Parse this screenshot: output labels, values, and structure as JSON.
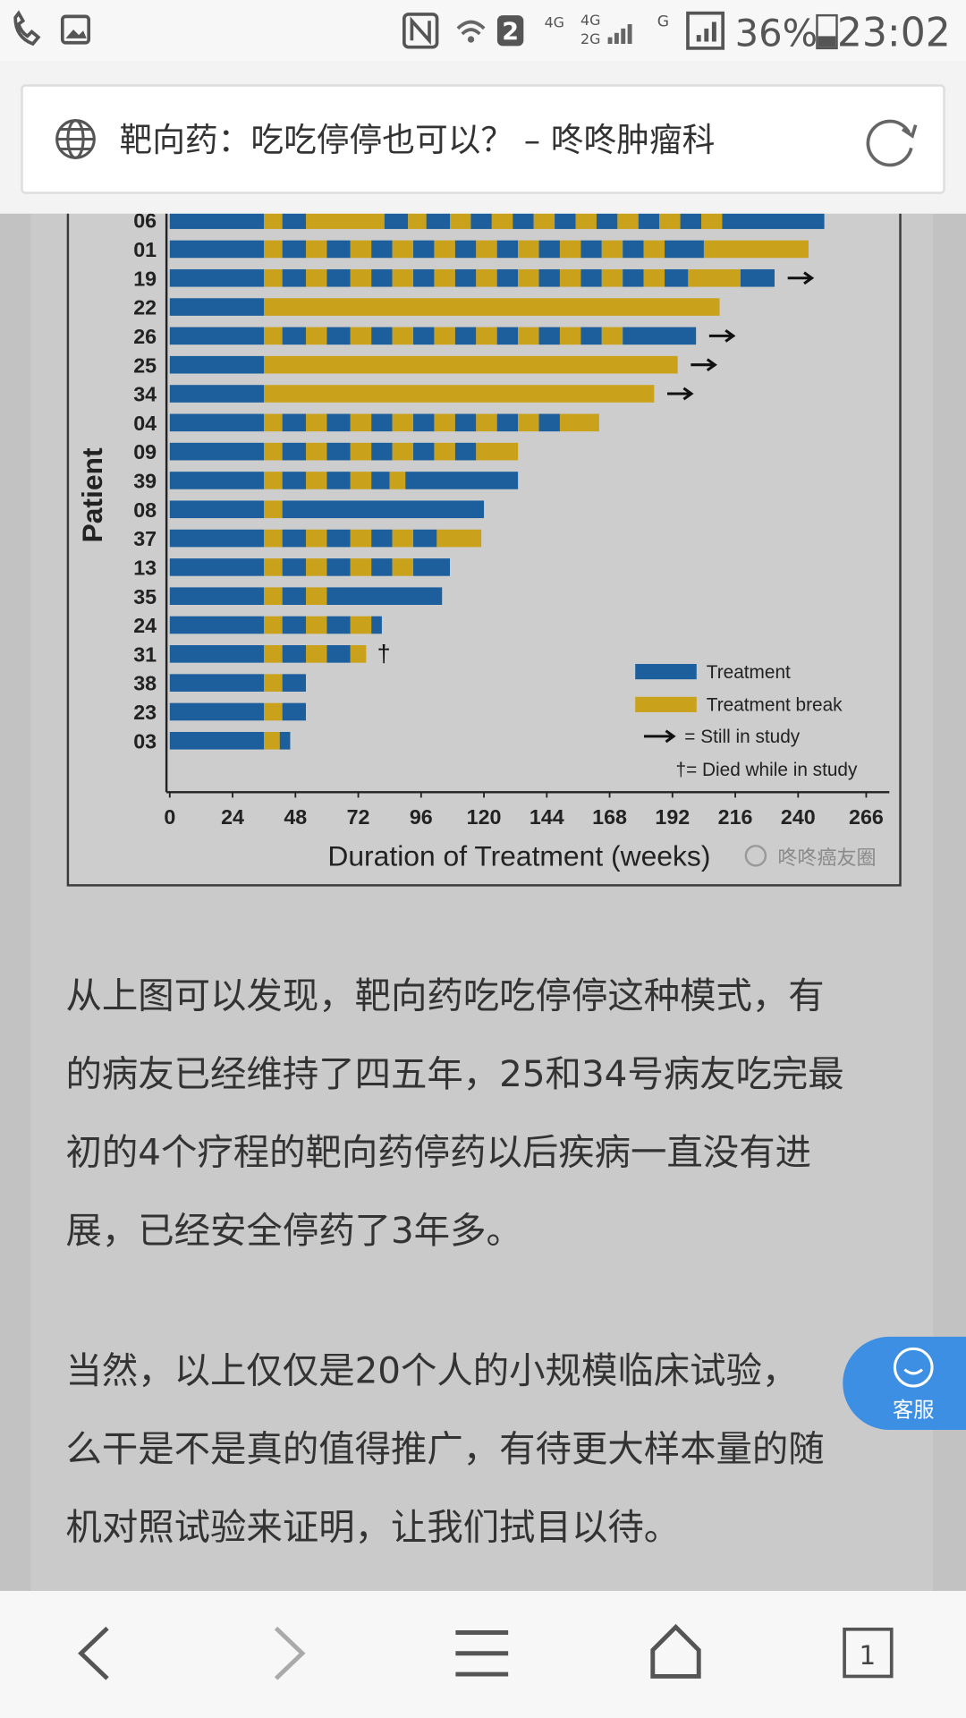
{
  "status_bar": {
    "time": "23:02",
    "battery": "36%",
    "sim_badge": "2",
    "network_labels": [
      "4G",
      "4G",
      "2G",
      "G"
    ]
  },
  "address_bar": {
    "title": "靶向药：吃吃停停也可以？ – 咚咚肿瘤科"
  },
  "chart_data": {
    "type": "swimmer",
    "x_label": "Duration of Treatment (weeks)",
    "y_label": "Patient",
    "categories": [
      "06",
      "01",
      "19",
      "22",
      "26",
      "25",
      "34",
      "04",
      "09",
      "39",
      "08",
      "37",
      "13",
      "35",
      "24",
      "31",
      "38",
      "23",
      "03"
    ],
    "series": [
      {
        "name": "Treatment",
        "color": "#1c5f9c"
      },
      {
        "name": "Treatment break",
        "color": "#c9a11b"
      }
    ],
    "segments": [
      [
        36,
        7,
        9,
        30,
        9,
        7,
        9,
        8,
        8,
        8,
        8,
        8,
        8,
        8,
        8,
        8,
        8,
        8,
        8,
        8,
        39
      ],
      [
        36,
        7,
        9,
        8,
        9,
        8,
        8,
        8,
        8,
        8,
        8,
        8,
        8,
        8,
        8,
        8,
        8,
        8,
        8,
        8,
        15,
        40
      ],
      [
        36,
        7,
        9,
        8,
        9,
        8,
        8,
        8,
        8,
        8,
        8,
        8,
        8,
        8,
        8,
        8,
        8,
        8,
        8,
        8,
        9,
        20,
        13
      ],
      [
        36,
        174
      ],
      [
        36,
        7,
        9,
        8,
        9,
        8,
        8,
        8,
        8,
        8,
        8,
        8,
        8,
        8,
        8,
        8,
        8,
        8,
        28
      ],
      [
        36,
        158
      ],
      [
        36,
        149
      ],
      [
        36,
        7,
        9,
        8,
        9,
        8,
        8,
        8,
        8,
        8,
        8,
        8,
        8,
        8,
        8,
        15
      ],
      [
        36,
        7,
        9,
        8,
        9,
        8,
        8,
        8,
        8,
        8,
        8,
        16
      ],
      [
        36,
        7,
        9,
        8,
        9,
        8,
        7,
        6,
        43
      ],
      [
        36,
        7,
        77
      ],
      [
        36,
        7,
        9,
        8,
        9,
        8,
        8,
        8,
        9,
        17
      ],
      [
        36,
        7,
        9,
        8,
        9,
        8,
        8,
        8,
        14
      ],
      [
        36,
        7,
        9,
        8,
        44
      ],
      [
        36,
        7,
        9,
        8,
        9,
        8,
        4
      ],
      [
        36,
        7,
        9,
        8,
        9,
        6
      ],
      [
        36,
        7,
        9
      ],
      [
        36,
        7,
        9
      ],
      [
        36,
        6,
        4
      ]
    ],
    "still_in_study": [
      false,
      false,
      true,
      false,
      true,
      true,
      true,
      false,
      false,
      false,
      false,
      false,
      false,
      false,
      false,
      false,
      false,
      false,
      false
    ],
    "annotations": [
      null,
      null,
      null,
      null,
      null,
      null,
      null,
      null,
      null,
      null,
      null,
      null,
      null,
      null,
      null,
      "†",
      null,
      null,
      null
    ],
    "legend_notes": [
      "= Still in study",
      "†= Died while in study"
    ],
    "watermark": "咚咚癌友圈",
    "xlim": [
      0,
      274
    ],
    "xticks": [
      0,
      24,
      48,
      72,
      96,
      120,
      144,
      168,
      192,
      216,
      240,
      266
    ]
  },
  "article": {
    "paragraphs": [
      [
        "从上图可以发现，靶向药吃吃停停这种模式，有",
        "的病友已经维持了四五年，25和34号病友吃完最",
        "初的4个疗程的靶向药停药以后疾病一直没有进",
        "展，已经安全停药了3年多。"
      ],
      [
        "当然，以上仅仅是20个人的小规模临床试验，",
        "么干是不是真的值得推广，有待更大样本量的随",
        "机对照试验来证明，让我们拭目以待。"
      ]
    ]
  },
  "service_button": {
    "label": "客服"
  },
  "bottom_nav": {
    "tab_count": "1"
  }
}
